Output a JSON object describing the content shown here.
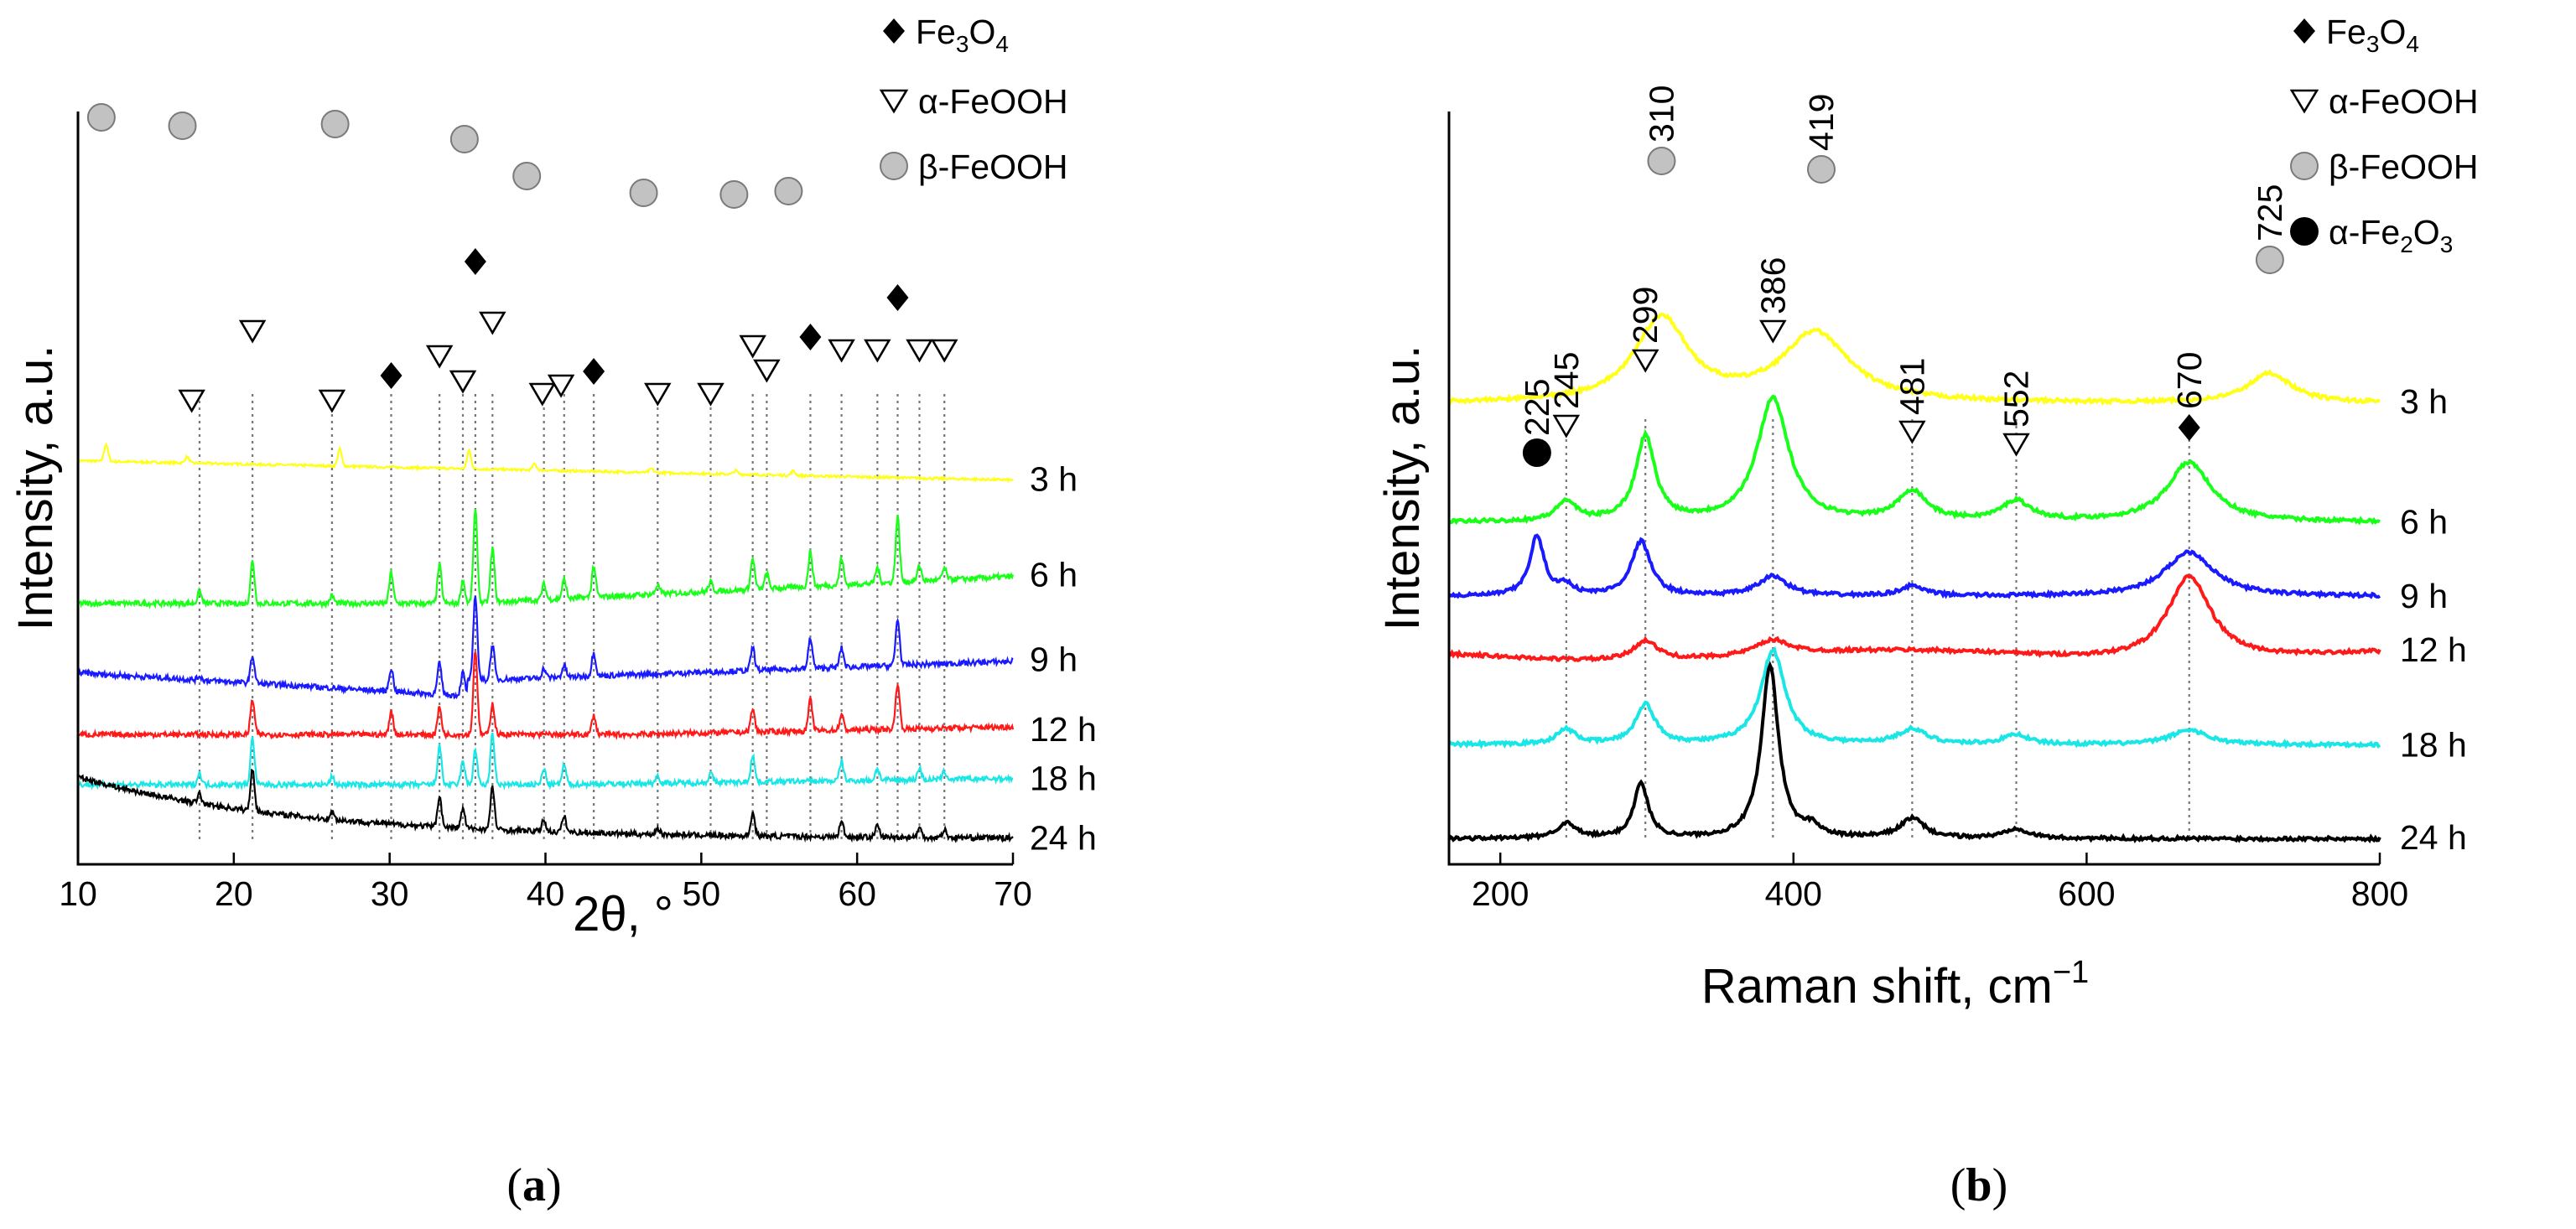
{
  "chart_data": [
    {
      "panel": "(a)",
      "type": "line",
      "xlabel": "2θ, °",
      "ylabel": "Intensity, a.u.",
      "xlim": [
        10,
        70
      ],
      "xticks": [
        10,
        20,
        30,
        40,
        50,
        60,
        70
      ],
      "grid": false,
      "legend_position": "top-right",
      "legend": [
        {
          "marker": "diamond",
          "text": "Fe3O4"
        },
        {
          "marker": "triangle",
          "text": "α-FeOOH"
        },
        {
          "marker": "gray-circle",
          "text": "β-FeOOH"
        }
      ],
      "series": [
        {
          "name": "3 h",
          "color": "#ffff1a",
          "offset": 4.6,
          "peaks": [
            [
              11.8,
              0.22
            ],
            [
              17.0,
              0.08
            ],
            [
              26.8,
              0.22
            ],
            [
              35.1,
              0.24
            ],
            [
              39.3,
              0.08
            ],
            [
              46.8,
              0.05
            ],
            [
              52.2,
              0.05
            ],
            [
              55.9,
              0.06
            ]
          ]
        },
        {
          "name": "6 h",
          "color": "#1aff1a",
          "offset": 3.0,
          "peaks": [
            [
              17.8,
              0.15
            ],
            [
              21.2,
              0.55
            ],
            [
              26.3,
              0.1
            ],
            [
              30.1,
              0.4
            ],
            [
              33.2,
              0.5
            ],
            [
              34.7,
              0.3
            ],
            [
              35.5,
              1.2
            ],
            [
              36.6,
              0.7
            ],
            [
              39.9,
              0.2
            ],
            [
              41.2,
              0.25
            ],
            [
              43.1,
              0.4
            ],
            [
              47.2,
              0.12
            ],
            [
              50.6,
              0.12
            ],
            [
              53.3,
              0.4
            ],
            [
              54.2,
              0.2
            ],
            [
              57.0,
              0.45
            ],
            [
              59.0,
              0.35
            ],
            [
              61.3,
              0.2
            ],
            [
              62.6,
              0.85
            ],
            [
              64.0,
              0.2
            ],
            [
              65.6,
              0.15
            ]
          ]
        },
        {
          "name": "9 h",
          "color": "#1a1aff",
          "offset": 2.0,
          "peaks": [
            [
              17.8,
              0.05
            ],
            [
              21.2,
              0.35
            ],
            [
              30.1,
              0.3
            ],
            [
              33.2,
              0.4
            ],
            [
              34.7,
              0.3
            ],
            [
              35.5,
              1.1
            ],
            [
              36.6,
              0.45
            ],
            [
              39.9,
              0.12
            ],
            [
              41.2,
              0.15
            ],
            [
              43.1,
              0.3
            ],
            [
              53.3,
              0.3
            ],
            [
              57.0,
              0.4
            ],
            [
              59.0,
              0.25
            ],
            [
              62.6,
              0.6
            ]
          ]
        },
        {
          "name": "12 h",
          "color": "#ff1a1a",
          "offset": 1.3,
          "peaks": [
            [
              21.2,
              0.45
            ],
            [
              30.1,
              0.3
            ],
            [
              33.2,
              0.35
            ],
            [
              35.5,
              1.1
            ],
            [
              36.6,
              0.4
            ],
            [
              43.1,
              0.25
            ],
            [
              53.3,
              0.3
            ],
            [
              57.0,
              0.4
            ],
            [
              59.0,
              0.2
            ],
            [
              62.6,
              0.6
            ]
          ]
        },
        {
          "name": "18 h",
          "color": "#1ae6e6",
          "offset": 0.55,
          "peaks": [
            [
              17.8,
              0.15
            ],
            [
              21.2,
              0.6
            ],
            [
              26.3,
              0.1
            ],
            [
              33.2,
              0.5
            ],
            [
              34.7,
              0.3
            ],
            [
              35.5,
              0.45
            ],
            [
              36.6,
              0.65
            ],
            [
              39.9,
              0.2
            ],
            [
              41.2,
              0.25
            ],
            [
              47.2,
              0.1
            ],
            [
              50.6,
              0.12
            ],
            [
              53.3,
              0.35
            ],
            [
              59.0,
              0.25
            ],
            [
              61.3,
              0.15
            ],
            [
              64.0,
              0.15
            ],
            [
              65.6,
              0.1
            ]
          ]
        },
        {
          "name": "24 h",
          "color": "#000000",
          "offset": 0,
          "peaks": [
            [
              17.8,
              0.12
            ],
            [
              21.2,
              0.55
            ],
            [
              26.3,
              0.1
            ],
            [
              33.2,
              0.4
            ],
            [
              34.7,
              0.25
            ],
            [
              36.6,
              0.55
            ],
            [
              39.9,
              0.15
            ],
            [
              41.2,
              0.2
            ],
            [
              47.2,
              0.08
            ],
            [
              53.3,
              0.3
            ],
            [
              59.0,
              0.2
            ],
            [
              61.3,
              0.15
            ],
            [
              64.0,
              0.12
            ],
            [
              65.6,
              0.1
            ]
          ]
        }
      ],
      "guide_lines_x": [
        17.8,
        21.2,
        26.3,
        30.1,
        33.2,
        34.7,
        35.5,
        36.6,
        39.9,
        41.2,
        43.1,
        47.2,
        50.6,
        53.3,
        54.2,
        57.0,
        59.0,
        61.3,
        62.6,
        64.0,
        65.6
      ],
      "markers": {
        "gray_circle_x": [
          11.5,
          16.7,
          26.5,
          34.8,
          38.8,
          46.3,
          52.1,
          55.6
        ],
        "triangle_x": [
          17.3,
          21.2,
          26.3,
          33.2,
          34.7,
          36.6,
          39.8,
          41.0,
          47.2,
          50.6,
          53.3,
          54.2,
          59.0,
          61.3,
          64.0,
          65.6
        ],
        "diamond_x": [
          30.1,
          35.5,
          43.1,
          57.0,
          62.6
        ]
      }
    },
    {
      "panel": "(b)",
      "type": "line",
      "xlabel": "Raman shift, cm",
      "xlabel_sup": "−1",
      "ylabel": "Intensity, a.u.",
      "xlim": [
        165,
        800
      ],
      "xticks": [
        200,
        400,
        600,
        800
      ],
      "grid": false,
      "legend_position": "top-right",
      "legend": [
        {
          "marker": "diamond",
          "text": "Fe3O4"
        },
        {
          "marker": "triangle",
          "text": "α-FeOOH"
        },
        {
          "marker": "gray-circle",
          "text": "β-FeOOH"
        },
        {
          "marker": "black-circle",
          "text": "α-Fe2O3"
        }
      ],
      "peak_labels": [
        "225",
        "245",
        "299",
        "386",
        "481",
        "552",
        "670",
        "310",
        "419",
        "725"
      ],
      "guide_lines_x": [
        245,
        299,
        386,
        481,
        552,
        670
      ],
      "series": [
        {
          "name": "3 h",
          "color": "#ffff1a",
          "offset": 4.4,
          "peaks": [
            [
              310,
              0.85,
              22
            ],
            [
              415,
              0.7,
              28
            ],
            [
              725,
              0.3,
              18
            ]
          ]
        },
        {
          "name": "6 h",
          "color": "#1aff1a",
          "offset": 3.2,
          "peaks": [
            [
              245,
              0.2,
              8
            ],
            [
              299,
              0.85,
              8
            ],
            [
              386,
              1.25,
              13
            ],
            [
              481,
              0.3,
              12
            ],
            [
              552,
              0.2,
              12
            ],
            [
              670,
              0.6,
              18
            ]
          ]
        },
        {
          "name": "9 h",
          "color": "#1a1aff",
          "offset": 2.45,
          "peaks": [
            [
              225,
              0.6,
              6
            ],
            [
              245,
              0.1,
              6
            ],
            [
              296,
              0.55,
              8
            ],
            [
              386,
              0.2,
              12
            ],
            [
              481,
              0.1,
              10
            ],
            [
              670,
              0.45,
              20
            ]
          ]
        },
        {
          "name": "12 h",
          "color": "#ff1a1a",
          "offset": 1.8,
          "peaks": [
            [
              299,
              0.2,
              10
            ],
            [
              386,
              0.15,
              14
            ],
            [
              670,
              0.85,
              18
            ]
          ]
        },
        {
          "name": "18 h",
          "color": "#1ae6e6",
          "offset": 0.95,
          "peaks": [
            [
              245,
              0.15,
              8
            ],
            [
              299,
              0.4,
              8
            ],
            [
              386,
              0.95,
              10
            ],
            [
              481,
              0.15,
              12
            ],
            [
              552,
              0.1,
              10
            ],
            [
              670,
              0.15,
              15
            ]
          ]
        },
        {
          "name": "24 h",
          "color": "#000000",
          "offset": 0,
          "peaks": [
            [
              245,
              0.15,
              8
            ],
            [
              296,
              0.55,
              6
            ],
            [
              384,
              1.75,
              7
            ],
            [
              413,
              0.1,
              6
            ],
            [
              481,
              0.2,
              10
            ],
            [
              552,
              0.1,
              10
            ]
          ]
        }
      ]
    }
  ]
}
